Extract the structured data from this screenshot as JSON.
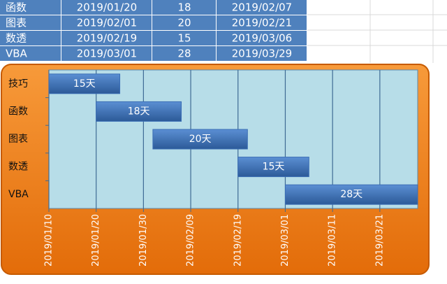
{
  "table": {
    "rows": [
      [
        "函数",
        "2019/01/20",
        "18",
        "2019/02/07"
      ],
      [
        "图表",
        "2019/02/01",
        "20",
        "2019/02/21"
      ],
      [
        "数透",
        "2019/02/19",
        "15",
        "2019/03/06"
      ],
      [
        "VBA",
        "2019/03/01",
        "28",
        "2019/03/29"
      ]
    ]
  },
  "chart_data": {
    "type": "gantt",
    "categories": [
      "技巧",
      "函数",
      "图表",
      "数透",
      "VBA"
    ],
    "series": [
      {
        "color": "#3a6db5",
        "starts": [
          "2019/01/10",
          "2019/01/20",
          "2019/02/01",
          "2019/02/19",
          "2019/03/01"
        ],
        "values": [
          15,
          18,
          20,
          15,
          28
        ],
        "value_labels": [
          "15天",
          "18天",
          "20天",
          "15天",
          "28天"
        ]
      }
    ],
    "xlim": [
      "2019/01/10",
      "2019/03/29"
    ],
    "xticks": [
      "2019/01/10",
      "2019/01/20",
      "2019/01/30",
      "2019/02/09",
      "2019/02/19",
      "2019/03/01",
      "2019/03/11",
      "2019/03/21"
    ],
    "grid": true
  }
}
